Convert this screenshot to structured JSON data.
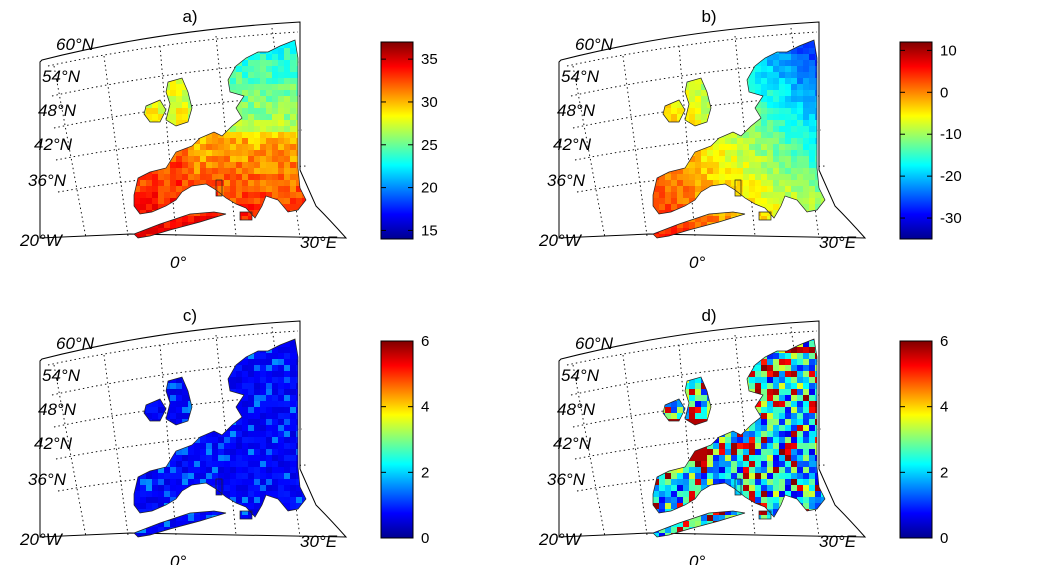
{
  "panels": [
    {
      "label": "a)",
      "colorbar": {
        "ticks": [
          "35",
          "30",
          "25",
          "20",
          "15"
        ],
        "min": 14,
        "max": 37,
        "tick_values": [
          35,
          30,
          25,
          20,
          15
        ]
      },
      "pattern": "warm"
    },
    {
      "label": "b)",
      "colorbar": {
        "ticks": [
          "10",
          "0",
          "-10",
          "-20",
          "-30"
        ],
        "min": -35,
        "max": 12,
        "tick_values": [
          10,
          0,
          -10,
          -20,
          -30
        ]
      },
      "pattern": "gradient"
    },
    {
      "label": "c)",
      "colorbar": {
        "ticks": [
          "6",
          "4",
          "2",
          "0"
        ],
        "min": 0,
        "max": 6,
        "tick_values": [
          6,
          4,
          2,
          0
        ]
      },
      "pattern": "low"
    },
    {
      "label": "d)",
      "colorbar": {
        "ticks": [
          "6",
          "4",
          "2",
          "0"
        ],
        "min": 0,
        "max": 6,
        "tick_values": [
          6,
          4,
          2,
          0
        ]
      },
      "pattern": "noisy"
    }
  ],
  "latitudes": [
    "60°N",
    "54°N",
    "48°N",
    "42°N",
    "36°N"
  ],
  "longitudes": [
    "20°W",
    "0°",
    "30°E"
  ],
  "colormap": "jet"
}
